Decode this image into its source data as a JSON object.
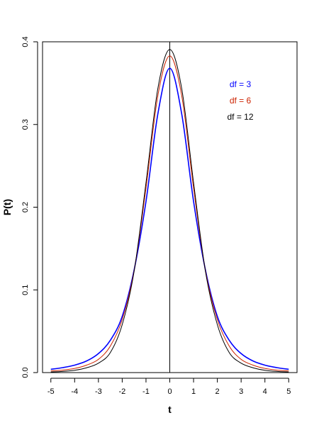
{
  "chart_data": {
    "type": "line",
    "title": "",
    "xlabel": "t",
    "ylabel": "P(t)",
    "xlim": [
      -5.35,
      5.35
    ],
    "ylim": [
      0,
      0.4
    ],
    "x_ticks": [
      -5,
      -4,
      -3,
      -2,
      -1,
      0,
      1,
      2,
      3,
      4,
      5
    ],
    "x_tick_labels": [
      "-5",
      "-4",
      "-3",
      "-2",
      "-1",
      "0",
      "1",
      "2",
      "3",
      "4",
      "5"
    ],
    "y_ticks": [
      0,
      0.1,
      0.2,
      0.3,
      0.4
    ],
    "y_tick_labels": [
      "0.0",
      "0.1",
      "0.2",
      "0.3",
      "0.4"
    ],
    "grid": false,
    "legend_position": "top-right",
    "vertical_reference_line_x": 0,
    "x": [
      -5,
      -4.5,
      -4,
      -3.5,
      -3,
      -2.5,
      -2,
      -1.5,
      -1,
      -0.5,
      0,
      0.5,
      1,
      1.5,
      2,
      2.5,
      3,
      3.5,
      4,
      4.5,
      5
    ],
    "series": [
      {
        "name": "df = 3",
        "color": "#0000FF",
        "values": [
          0.004,
          0.006,
          0.009,
          0.014,
          0.023,
          0.039,
          0.068,
          0.124,
          0.207,
          0.313,
          0.368,
          0.313,
          0.207,
          0.124,
          0.068,
          0.039,
          0.023,
          0.014,
          0.009,
          0.006,
          0.004
        ]
      },
      {
        "name": "df = 6",
        "color": "#CC2200",
        "values": [
          0.002,
          0.003,
          0.005,
          0.009,
          0.016,
          0.032,
          0.064,
          0.123,
          0.223,
          0.335,
          0.383,
          0.335,
          0.223,
          0.123,
          0.064,
          0.032,
          0.016,
          0.009,
          0.005,
          0.003,
          0.002
        ]
      },
      {
        "name": "df = 12",
        "color": "#000000",
        "values": [
          0.0007,
          0.0014,
          0.0028,
          0.0058,
          0.0114,
          0.0242,
          0.058,
          0.1223,
          0.2297,
          0.3437,
          0.3907,
          0.3437,
          0.2297,
          0.1223,
          0.058,
          0.0242,
          0.0114,
          0.0058,
          0.0028,
          0.0014,
          0.0007
        ]
      }
    ]
  }
}
